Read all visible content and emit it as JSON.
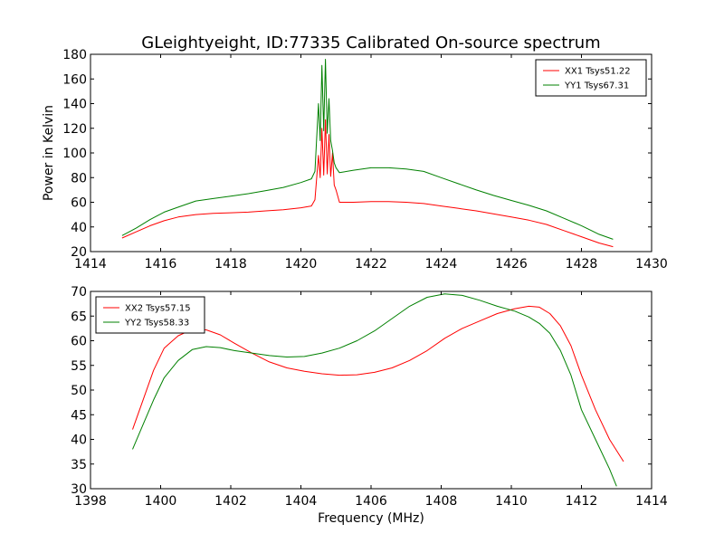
{
  "title": "GLeightyeight, ID:77335 Calibrated On-source spectrum",
  "chart_data": [
    {
      "type": "line",
      "ylabel": "Power in Kelvin",
      "xlabel": "",
      "xlim": [
        1414,
        1430
      ],
      "ylim": [
        20,
        180
      ],
      "xticks": [
        1414,
        1416,
        1418,
        1420,
        1422,
        1424,
        1426,
        1428,
        1430
      ],
      "yticks": [
        20,
        40,
        60,
        80,
        100,
        120,
        140,
        160,
        180
      ],
      "legend": "top-right",
      "series": [
        {
          "name": "XX1 Tsys51.22",
          "color": "#ff0000",
          "x": [
            1414.9,
            1415.3,
            1415.7,
            1416.1,
            1416.5,
            1417.0,
            1417.5,
            1418.0,
            1418.5,
            1419.0,
            1419.5,
            1420.0,
            1420.3,
            1420.4,
            1420.5,
            1420.55,
            1420.6,
            1420.65,
            1420.7,
            1420.75,
            1420.8,
            1420.85,
            1420.9,
            1420.95,
            1421.0,
            1421.1,
            1421.5,
            1422.0,
            1422.5,
            1423.0,
            1423.5,
            1424.0,
            1424.5,
            1425.0,
            1425.5,
            1426.0,
            1426.5,
            1427.0,
            1427.5,
            1428.0,
            1428.5,
            1428.9
          ],
          "y": [
            31,
            36,
            41,
            45,
            48,
            50,
            51,
            51.5,
            52,
            53,
            54,
            55.5,
            57,
            62,
            98,
            80,
            120,
            82,
            127,
            83,
            115,
            81,
            100,
            74,
            70,
            60,
            60,
            60.5,
            60.5,
            60,
            59,
            57,
            55,
            53,
            50.5,
            48,
            45.5,
            42,
            37,
            32,
            27,
            24
          ]
        },
        {
          "name": "YY1 Tsys67.31",
          "color": "#008000",
          "x": [
            1414.9,
            1415.3,
            1415.7,
            1416.1,
            1416.5,
            1417.0,
            1417.5,
            1418.0,
            1418.5,
            1419.0,
            1419.5,
            1420.0,
            1420.3,
            1420.4,
            1420.5,
            1420.55,
            1420.6,
            1420.65,
            1420.7,
            1420.75,
            1420.8,
            1420.85,
            1420.9,
            1420.95,
            1421.0,
            1421.1,
            1421.5,
            1422.0,
            1422.5,
            1423.0,
            1423.5,
            1424.0,
            1424.5,
            1425.0,
            1425.5,
            1426.0,
            1426.5,
            1427.0,
            1427.5,
            1428.0,
            1428.5,
            1428.9
          ],
          "y": [
            33,
            39,
            46,
            52,
            56,
            61,
            63,
            65,
            67,
            69.5,
            72,
            76,
            79,
            85,
            140,
            110,
            171,
            118,
            176,
            116,
            144,
            110,
            102,
            92,
            88,
            84,
            86,
            88,
            88,
            87,
            85,
            80,
            75,
            70,
            65.5,
            61.5,
            57.5,
            53,
            47,
            41,
            34,
            30
          ]
        }
      ]
    },
    {
      "type": "line",
      "xlabel": "Frequency (MHz)",
      "ylabel": "",
      "xlim": [
        1398,
        1414
      ],
      "ylim": [
        30,
        70
      ],
      "xticks": [
        1398,
        1400,
        1402,
        1404,
        1406,
        1408,
        1410,
        1412,
        1414
      ],
      "yticks": [
        30,
        35,
        40,
        45,
        50,
        55,
        60,
        65,
        70
      ],
      "legend": "top-left",
      "series": [
        {
          "name": "XX2 Tsys57.15",
          "color": "#ff0000",
          "x": [
            1399.2,
            1399.5,
            1399.8,
            1400.1,
            1400.5,
            1400.9,
            1401.3,
            1401.7,
            1402.1,
            1402.6,
            1403.1,
            1403.6,
            1404.1,
            1404.6,
            1405.1,
            1405.6,
            1406.1,
            1406.6,
            1407.1,
            1407.6,
            1408.1,
            1408.6,
            1409.1,
            1409.6,
            1410.1,
            1410.5,
            1410.8,
            1411.1,
            1411.4,
            1411.7,
            1412.0,
            1412.4,
            1412.8,
            1413.2
          ],
          "y": [
            42,
            48,
            54,
            58.5,
            61,
            62.3,
            62.2,
            61.2,
            59.5,
            57.5,
            55.7,
            54.5,
            53.8,
            53.3,
            53,
            53.1,
            53.6,
            54.5,
            56,
            58,
            60.5,
            62.5,
            64,
            65.5,
            66.5,
            67,
            66.8,
            65.5,
            63,
            59,
            53,
            46,
            40,
            35.5
          ]
        },
        {
          "name": "YY2 Tsys58.33",
          "color": "#008000",
          "x": [
            1399.2,
            1399.5,
            1399.8,
            1400.1,
            1400.5,
            1400.9,
            1401.3,
            1401.7,
            1402.1,
            1402.6,
            1403.1,
            1403.6,
            1404.1,
            1404.6,
            1405.1,
            1405.6,
            1406.1,
            1406.6,
            1407.1,
            1407.6,
            1408.1,
            1408.6,
            1409.1,
            1409.6,
            1410.1,
            1410.5,
            1410.8,
            1411.1,
            1411.4,
            1411.7,
            1412.0,
            1412.4,
            1412.8,
            1413.0
          ],
          "y": [
            38,
            43,
            48,
            52.5,
            56,
            58.2,
            58.8,
            58.6,
            58,
            57.5,
            57,
            56.7,
            56.8,
            57.5,
            58.5,
            60,
            62,
            64.5,
            67,
            68.8,
            69.5,
            69.2,
            68.2,
            67,
            66,
            64.8,
            63.5,
            61.5,
            58,
            53,
            46,
            40,
            34,
            30.5
          ]
        }
      ]
    }
  ]
}
